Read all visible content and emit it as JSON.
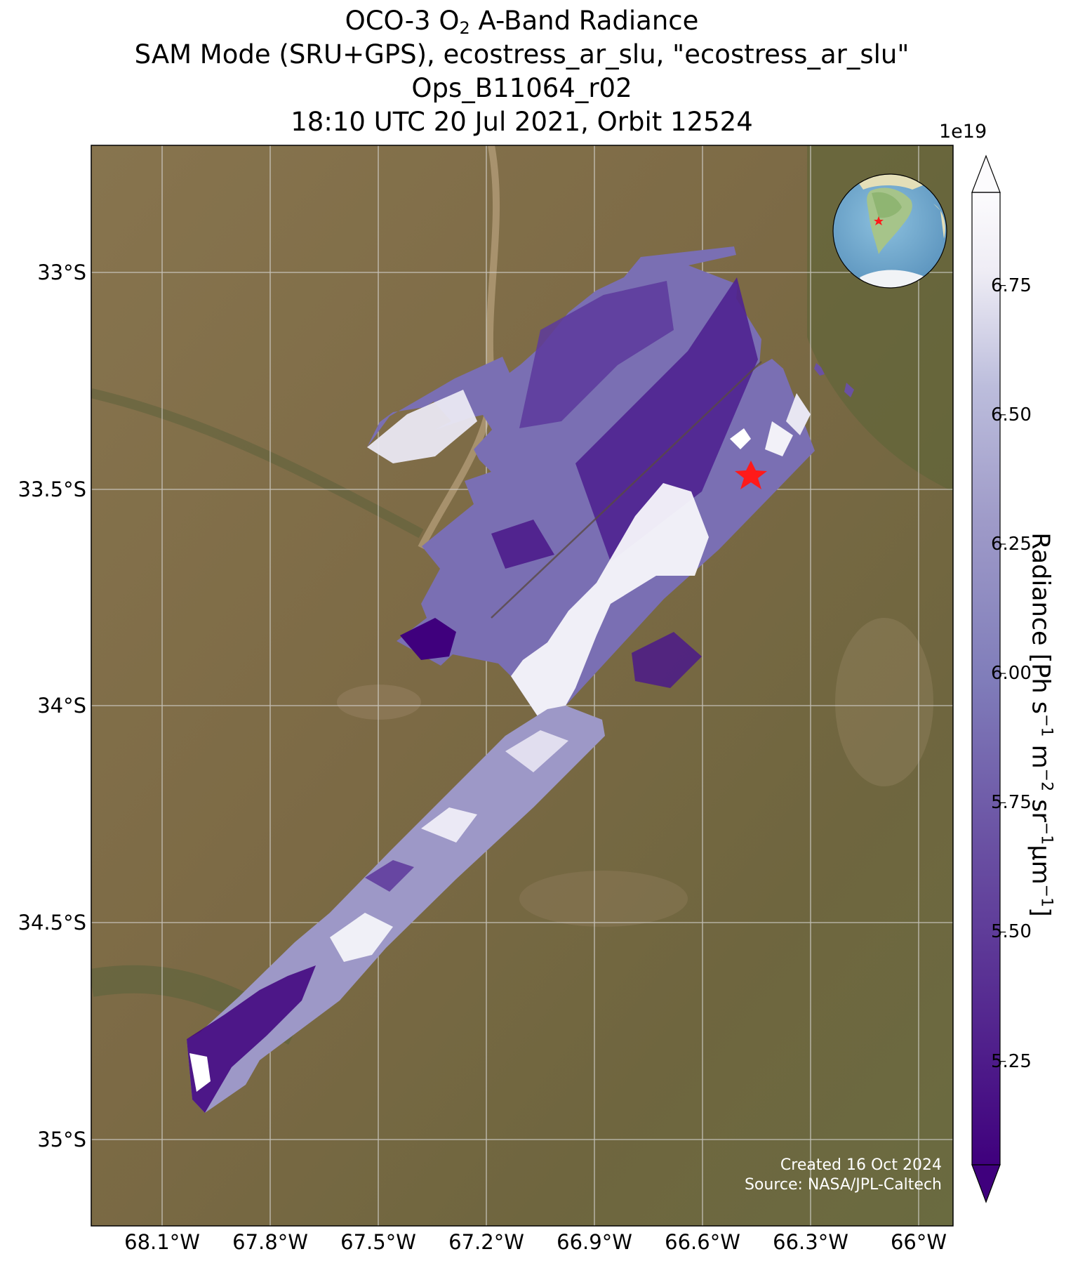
{
  "title": {
    "line1_prefix": "OCO-3 O",
    "line1_sub": "2",
    "line1_suffix": " A-Band Radiance",
    "line2": "SAM Mode (SRU+GPS), ecostress_ar_slu, \"ecostress_ar_slu\"",
    "line3": "Ops_B11064_r02",
    "line4": "18:10 UTC 20 Jul 2021, Orbit 12524"
  },
  "map": {
    "lat_labels": [
      "33°S",
      "33.5°S",
      "34°S",
      "34.5°S",
      "35°S"
    ],
    "lon_labels": [
      "68.1°W",
      "67.8°W",
      "67.5°W",
      "67.2°W",
      "66.9°W",
      "66.6°W",
      "66.3°W",
      "66°W"
    ],
    "target_marker": "red-star-icon",
    "inset": "globe-inset-south-america"
  },
  "colorbar": {
    "exponent": "1e19",
    "ticks": [
      "6.75",
      "6.50",
      "6.25",
      "6.00",
      "5.75",
      "5.50",
      "5.25"
    ],
    "tick_values": [
      6.75,
      6.5,
      6.25,
      6.0,
      5.75,
      5.5,
      5.25
    ],
    "range": [
      5.05,
      6.93
    ],
    "colormap": "Purples_r",
    "label_prefix": "Radiance [Ph s",
    "label_parts": [
      "−1",
      " m",
      "−2",
      " sr",
      "−1",
      "μm",
      "−1",
      "]"
    ]
  },
  "credits": {
    "created": "Created 16 Oct 2024",
    "source": "Source: NASA/JPL-Caltech"
  },
  "colors": {
    "ground": "#7d6b46",
    "dark_purple": "#3f007d",
    "light_purple": "#fcfbfd",
    "star": "#ff1a1a",
    "ocean": "#6fa8cf"
  }
}
